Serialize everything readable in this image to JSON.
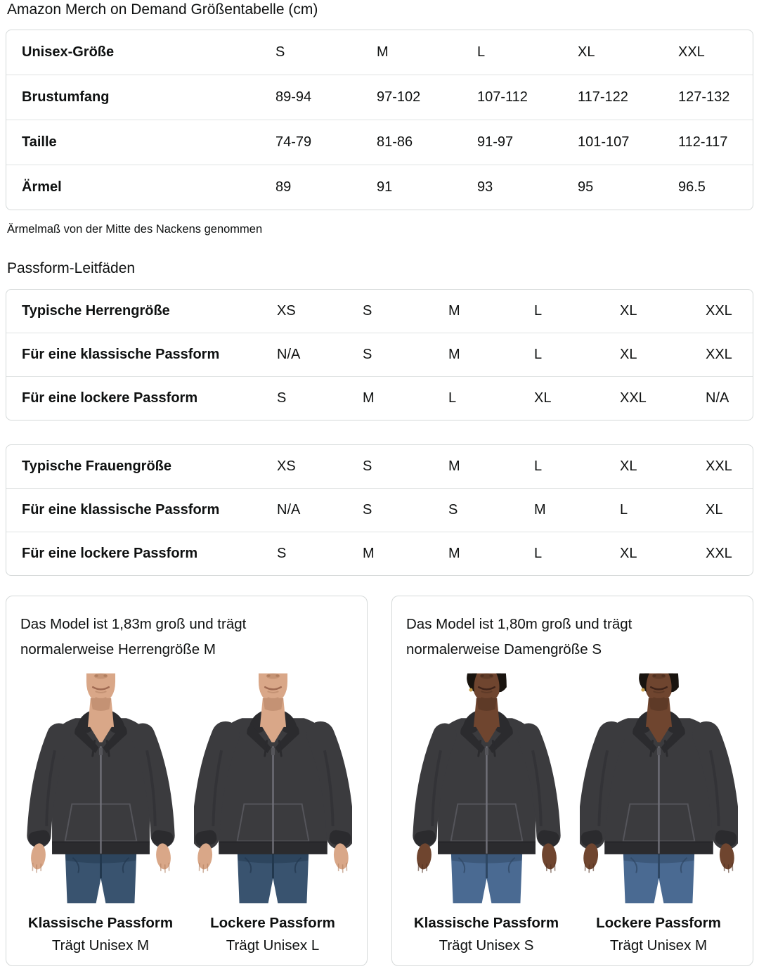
{
  "header": {
    "title": "Amazon Merch on Demand Größentabelle (cm)"
  },
  "size_table": {
    "rows": [
      {
        "label": "Unisex-Größe",
        "values": [
          "S",
          "M",
          "L",
          "XL",
          "XXL"
        ]
      },
      {
        "label": "Brustumfang",
        "values": [
          "89-94",
          "97-102",
          "107-112",
          "117-122",
          "127-132"
        ]
      },
      {
        "label": "Taille",
        "values": [
          "74-79",
          "81-86",
          "91-97",
          "101-107",
          "112-117"
        ]
      },
      {
        "label": "Ärmel",
        "values": [
          "89",
          "91",
          "93",
          "95",
          "96.5"
        ]
      }
    ],
    "footnote": "Ärmelmaß von der Mitte des Nackens genommen"
  },
  "fit_section": {
    "heading": "Passform-Leitfäden",
    "mens_table": {
      "rows": [
        {
          "label": "Typische Herrengröße",
          "values": [
            "XS",
            "S",
            "M",
            "L",
            "XL",
            "XXL"
          ]
        },
        {
          "label": "Für eine klassische Passform",
          "values": [
            "N/A",
            "S",
            "M",
            "L",
            "XL",
            "XXL"
          ]
        },
        {
          "label": "Für eine lockere Passform",
          "values": [
            "S",
            "M",
            "L",
            "XL",
            "XXL",
            "N/A"
          ]
        }
      ]
    },
    "womens_table": {
      "rows": [
        {
          "label": "Typische Frauengröße",
          "values": [
            "XS",
            "S",
            "M",
            "L",
            "XL",
            "XXL"
          ]
        },
        {
          "label": "Für eine klassische Passform",
          "values": [
            "N/A",
            "S",
            "S",
            "M",
            "L",
            "XL"
          ]
        },
        {
          "label": "Für eine lockere Passform",
          "values": [
            "S",
            "M",
            "M",
            "L",
            "XL",
            "XXL"
          ]
        }
      ]
    }
  },
  "model_cards": [
    {
      "description_lines": [
        "Das Model ist 1,83m groß und trägt",
        "normalerweise Herrengröße M"
      ],
      "figures": [
        {
          "caption": "Klassische Passform",
          "sub": "Trägt Unisex M"
        },
        {
          "caption": "Lockere Passform",
          "sub": "Trägt Unisex L"
        }
      ]
    },
    {
      "description_lines": [
        "Das Model ist 1,80m groß und trägt",
        "normalerweise Damengröße S"
      ],
      "figures": [
        {
          "caption": "Klassische Passform",
          "sub": "Trägt Unisex S"
        },
        {
          "caption": "Lockere Passform",
          "sub": "Trägt Unisex M"
        }
      ]
    }
  ],
  "colors": {
    "text": "#0f1111",
    "card_border": "#d5d9d9",
    "row_divider": "#e0e3e3",
    "hoodie": "#3b3b3e",
    "hoodie_dark": "#2b2b2e",
    "hoodie_stitch": "#5a5a60",
    "zipper": "#71717a",
    "jeans_male": "#39536f",
    "jeans_male_dark": "#22384e",
    "jeans_female": "#4a6a92",
    "jeans_female_dark": "#2d4662",
    "skin_male": "#d9a788",
    "skin_male_shadow": "#b07e5f",
    "mouth_male": "#a06a52",
    "skin_female": "#6f452f",
    "skin_female_shadow": "#4e2f1f",
    "mouth_female": "#3f241a",
    "hair_female": "#19140f",
    "earring": "#c9a14e"
  }
}
